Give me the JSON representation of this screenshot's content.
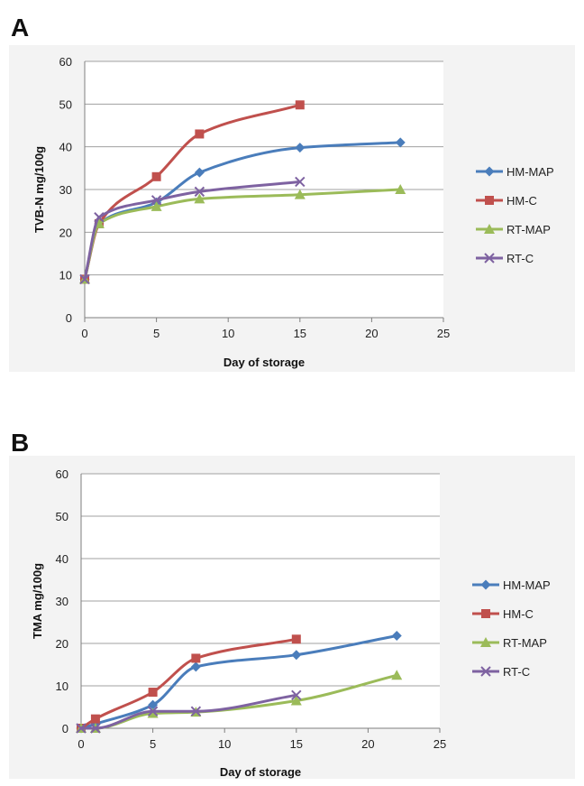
{
  "chart_data": [
    {
      "type": "line",
      "panel_label": "A",
      "xlabel": "Day of storage",
      "ylabel": "TVB-N mg/100g",
      "xlim": [
        0,
        25
      ],
      "ylim": [
        0,
        60
      ],
      "xticks": [
        "0",
        "5",
        "10",
        "15",
        "20",
        "25"
      ],
      "yticks": [
        "0",
        "10",
        "20",
        "30",
        "40",
        "50",
        "60"
      ],
      "grid": true,
      "legend_position": "right",
      "series": [
        {
          "name": "HM-MAP",
          "color": "#4a7dbb",
          "marker": "diamond",
          "x": [
            0,
            1,
            5,
            8,
            15,
            22
          ],
          "y": [
            9,
            22,
            27,
            34,
            39.8,
            41
          ]
        },
        {
          "name": "HM-C",
          "color": "#c0504d",
          "marker": "square",
          "x": [
            0,
            1,
            5,
            8,
            15
          ],
          "y": [
            9,
            22,
            33,
            43,
            49.8
          ]
        },
        {
          "name": "RT-MAP",
          "color": "#9bbb59",
          "marker": "triangle",
          "x": [
            0,
            1,
            5,
            8,
            15,
            22
          ],
          "y": [
            9,
            22,
            26,
            27.8,
            28.8,
            30
          ]
        },
        {
          "name": "RT-C",
          "color": "#7e62a1",
          "marker": "x",
          "x": [
            0,
            1,
            5,
            8,
            15
          ],
          "y": [
            9,
            23.5,
            27.5,
            29.5,
            31.8
          ]
        }
      ]
    },
    {
      "type": "line",
      "panel_label": "B",
      "xlabel": "Day of storage",
      "ylabel": "TMA mg/100g",
      "xlim": [
        0,
        25
      ],
      "ylim": [
        0,
        60
      ],
      "xticks": [
        "0",
        "5",
        "10",
        "15",
        "20",
        "25"
      ],
      "yticks": [
        "0",
        "10",
        "20",
        "30",
        "40",
        "50",
        "60"
      ],
      "grid": true,
      "legend_position": "right",
      "series": [
        {
          "name": "HM-MAP",
          "color": "#4a7dbb",
          "marker": "diamond",
          "x": [
            0,
            1,
            5,
            8,
            15,
            22
          ],
          "y": [
            0,
            1,
            5.5,
            14.5,
            17.3,
            21.8
          ]
        },
        {
          "name": "HM-C",
          "color": "#c0504d",
          "marker": "square",
          "x": [
            0,
            1,
            5,
            8,
            15
          ],
          "y": [
            0,
            2.2,
            8.5,
            16.5,
            21
          ]
        },
        {
          "name": "RT-MAP",
          "color": "#9bbb59",
          "marker": "triangle",
          "x": [
            0,
            1,
            5,
            8,
            15,
            22
          ],
          "y": [
            0,
            0,
            3.5,
            3.8,
            6.5,
            12.5
          ]
        },
        {
          "name": "RT-C",
          "color": "#7e62a1",
          "marker": "x",
          "x": [
            0,
            1,
            5,
            8,
            15
          ],
          "y": [
            0,
            0,
            4,
            4,
            7.8
          ]
        }
      ]
    }
  ]
}
